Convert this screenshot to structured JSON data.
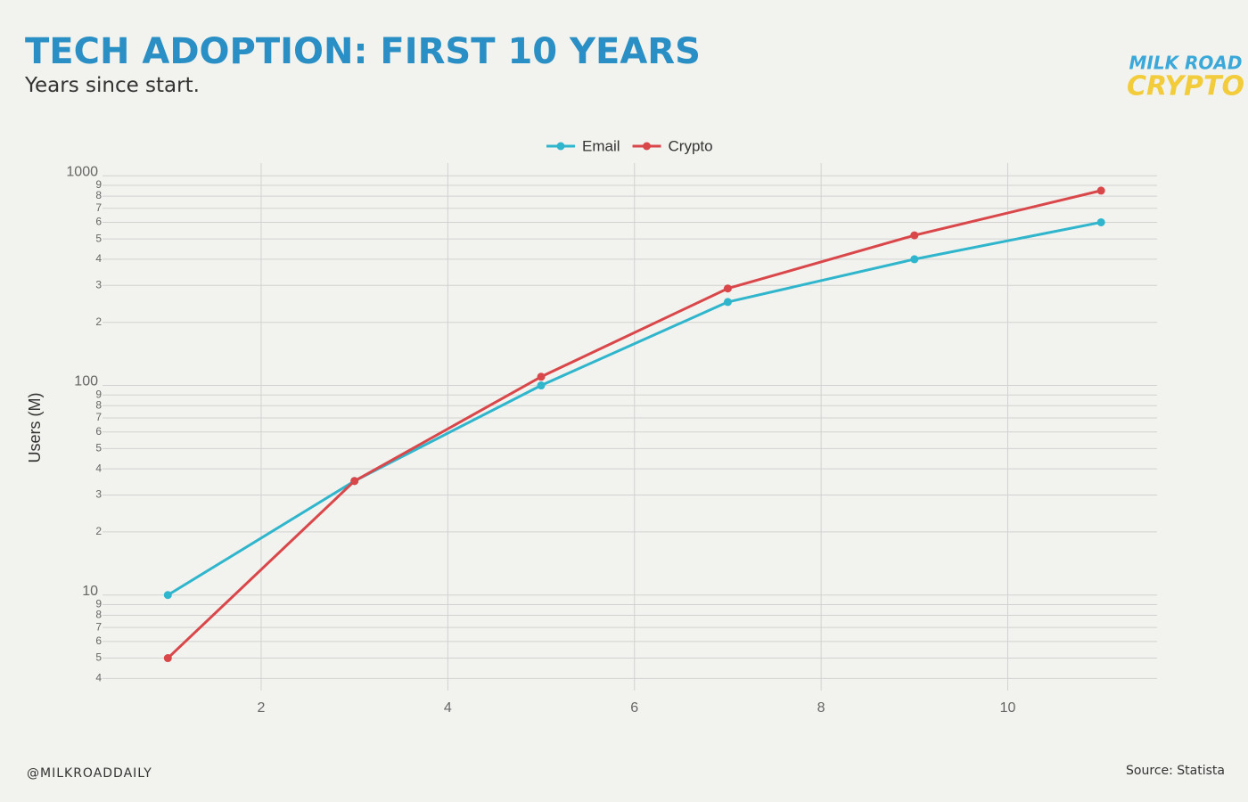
{
  "chart_data": {
    "type": "line",
    "title": "TECH ADOPTION: FIRST 10 YEARS",
    "subtitle": "Years since start.",
    "y_label": "Users (M)",
    "x": [
      1,
      3,
      5,
      7,
      9,
      11
    ],
    "series": [
      {
        "name": "Email",
        "color": "#2fb5cc",
        "values": [
          10,
          35,
          100,
          250,
          400,
          600
        ]
      },
      {
        "name": "Crypto",
        "color": "#d9474a",
        "values": [
          5,
          35,
          110,
          290,
          520,
          850
        ]
      }
    ],
    "xlim": [
      0.3,
      11.6
    ],
    "xticks": [
      2,
      4,
      6,
      8,
      10
    ],
    "ylim": [
      3.5,
      1150
    ],
    "log_y": true,
    "yticks": [
      4,
      5,
      6,
      7,
      8,
      9,
      10,
      {
        "value": 20,
        "label": "2"
      },
      {
        "value": 30,
        "label": "3"
      },
      {
        "value": 40,
        "label": "4"
      },
      {
        "value": 50,
        "label": "5"
      },
      {
        "value": 60,
        "label": "6"
      },
      {
        "value": 70,
        "label": "7"
      },
      {
        "value": 80,
        "label": "8"
      },
      {
        "value": 90,
        "label": "9"
      },
      100,
      {
        "value": 200,
        "label": "2"
      },
      {
        "value": 300,
        "label": "3"
      },
      {
        "value": 400,
        "label": "4"
      },
      {
        "value": 500,
        "label": "5"
      },
      {
        "value": 600,
        "label": "6"
      },
      {
        "value": 700,
        "label": "7"
      },
      {
        "value": 800,
        "label": "8"
      },
      {
        "value": 900,
        "label": "9"
      },
      1000
    ],
    "grid": true,
    "legend": "top"
  },
  "logo": [
    "MILK ROAD",
    "CRYPTO"
  ],
  "footer": {
    "handle": "@MILKROADDAILY",
    "source": "Source: Statista"
  }
}
